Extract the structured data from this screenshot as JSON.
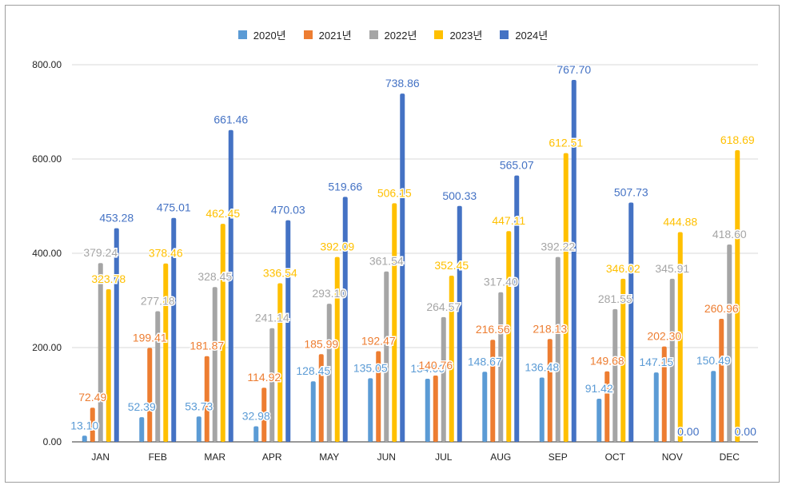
{
  "chart_data": {
    "type": "bar",
    "categories": [
      "JAN",
      "FEB",
      "MAR",
      "APR",
      "MAY",
      "JUN",
      "JUL",
      "AUG",
      "SEP",
      "OCT",
      "NOV",
      "DEC"
    ],
    "series": [
      {
        "name": "2020년",
        "color": "#5b9bd5",
        "values": [
          13.1,
          52.39,
          53.73,
          32.98,
          128.45,
          135.05,
          134.0,
          148.67,
          136.48,
          91.42,
          147.15,
          150.49
        ]
      },
      {
        "name": "2021년",
        "color": "#ed7d31",
        "values": [
          72.49,
          199.41,
          181.87,
          114.92,
          185.99,
          192.47,
          140.76,
          216.56,
          218.13,
          149.68,
          202.3,
          260.96
        ]
      },
      {
        "name": "2022년",
        "color": "#a5a5a5",
        "values": [
          379.24,
          277.18,
          328.45,
          241.14,
          293.1,
          361.54,
          264.57,
          317.4,
          392.22,
          281.55,
          345.91,
          418.6
        ]
      },
      {
        "name": "2023년",
        "color": "#ffc000",
        "values": [
          323.78,
          378.46,
          462.45,
          336.54,
          392.09,
          506.15,
          352.45,
          447.11,
          612.51,
          346.02,
          444.88,
          618.69
        ]
      },
      {
        "name": "2024년",
        "color": "#4472c4",
        "values": [
          453.28,
          475.01,
          661.46,
          470.03,
          519.66,
          738.86,
          500.33,
          565.07,
          767.7,
          507.73,
          0.0,
          0.0
        ]
      }
    ],
    "title": "",
    "xlabel": "",
    "ylabel": "",
    "ylim": [
      0,
      800
    ],
    "yticks": [
      "0.00",
      "200.00",
      "400.00",
      "600.00",
      "800.00"
    ],
    "grid": true,
    "legend": "top-center"
  }
}
